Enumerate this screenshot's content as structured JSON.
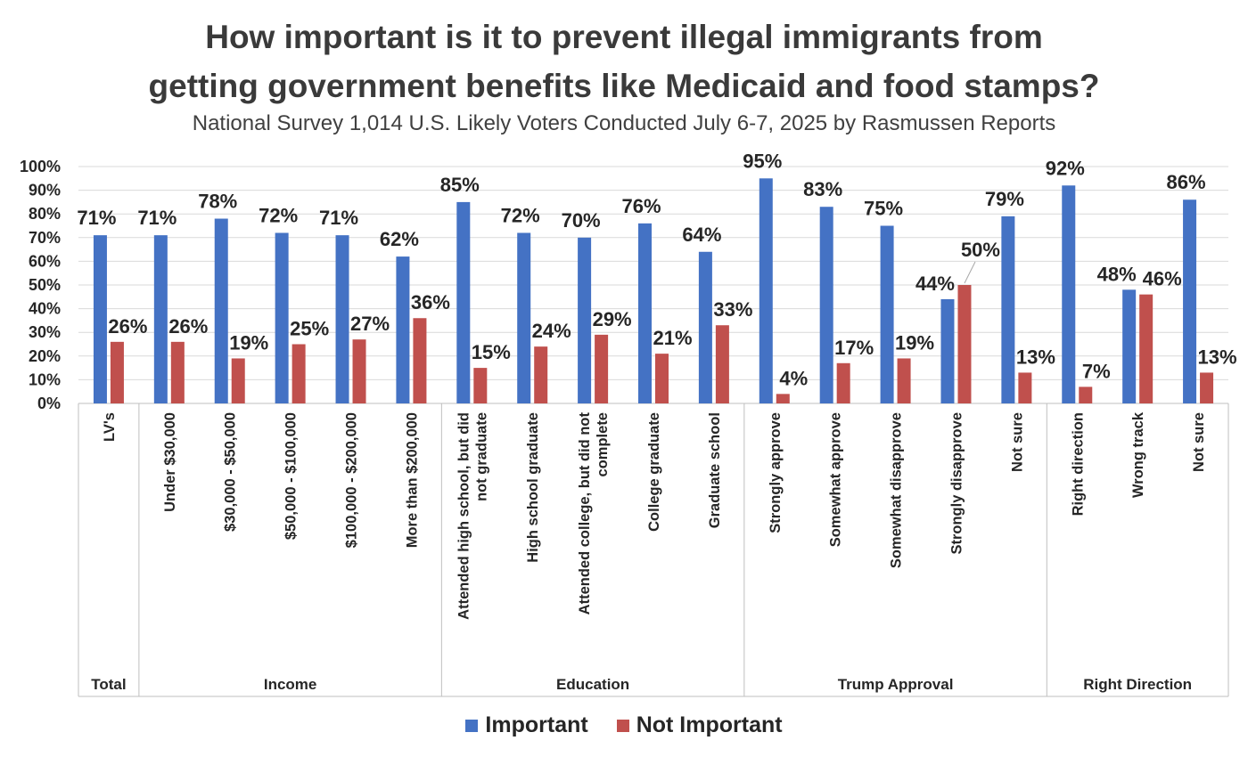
{
  "chart_data": {
    "type": "bar",
    "title_line1": "How important is it to prevent illegal immigrants from",
    "title_line2": "getting government benefits like Medicaid and food stamps?",
    "subtitle": "National Survey 1,014 U.S. Likely Voters Conducted July 6-7, 2025 by Rasmussen Reports",
    "ylim": [
      0,
      100
    ],
    "yticks": [
      "0%",
      "10%",
      "20%",
      "30%",
      "40%",
      "50%",
      "60%",
      "70%",
      "80%",
      "90%",
      "100%"
    ],
    "categories": [
      [
        "LV's"
      ],
      [
        "Under $30,000"
      ],
      [
        "$30,000 - $50,000"
      ],
      [
        "$50,000 - $100,000"
      ],
      [
        "$100,000 - $200,000"
      ],
      [
        "More than $200,000"
      ],
      [
        "Attended high school, but did",
        "not graduate"
      ],
      [
        "High school graduate"
      ],
      [
        "Attended college, but did not",
        "complete"
      ],
      [
        "College graduate"
      ],
      [
        "Graduate school"
      ],
      [
        "Strongly approve"
      ],
      [
        "Somewhat approve"
      ],
      [
        "Somewhat disapprove"
      ],
      [
        "Strongly disapprove"
      ],
      [
        "Not sure"
      ],
      [
        "Right direction"
      ],
      [
        "Wrong track"
      ],
      [
        "Not sure"
      ]
    ],
    "groups": [
      {
        "name": "Total",
        "count": 1
      },
      {
        "name": "Income",
        "count": 5
      },
      {
        "name": "Education",
        "count": 5
      },
      {
        "name": "Trump Approval",
        "count": 5
      },
      {
        "name": "Right Direction",
        "count": 3
      }
    ],
    "series": [
      {
        "name": "Important",
        "color": "#4472c4",
        "values": [
          71,
          71,
          78,
          72,
          71,
          62,
          85,
          72,
          70,
          76,
          64,
          95,
          83,
          75,
          44,
          79,
          92,
          48,
          86
        ],
        "labels": [
          "71%",
          "71%",
          "78%",
          "72%",
          "71%",
          "62%",
          "85%",
          "72%",
          "70%",
          "76%",
          "64%",
          "95%",
          "83%",
          "75%",
          "44%",
          "79%",
          "92%",
          "48%",
          "86%"
        ]
      },
      {
        "name": "Not Important",
        "color": "#c0504d",
        "values": [
          26,
          26,
          19,
          25,
          27,
          36,
          15,
          24,
          29,
          21,
          33,
          4,
          17,
          19,
          50,
          13,
          7,
          46,
          13
        ],
        "labels": [
          "26%",
          "26%",
          "19%",
          "25%",
          "27%",
          "36%",
          "15%",
          "24%",
          "29%",
          "21%",
          "33%",
          "4%",
          "17%",
          "19%",
          "50%",
          "13%",
          "7%",
          "46%",
          "13%"
        ]
      }
    ]
  }
}
